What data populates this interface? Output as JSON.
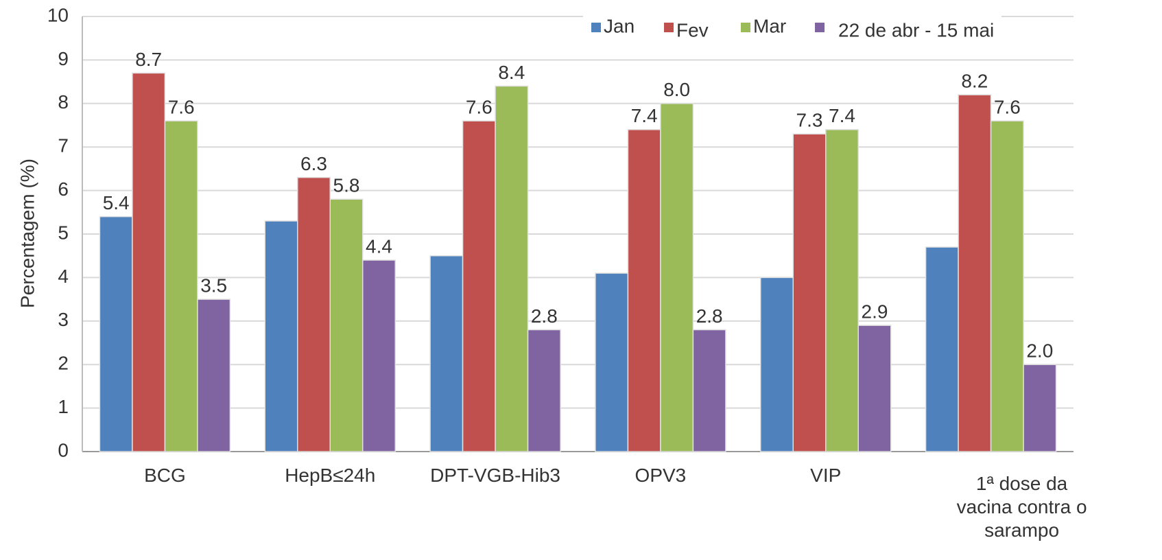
{
  "chart_data": {
    "type": "bar",
    "y_label": "Percentagem (%)",
    "categories": [
      "BCG",
      "HepB≤24h",
      "DPT-VGB-Hib3",
      "OPV3",
      "VIP",
      "1ª dose da vacina contra o sarampo"
    ],
    "series": [
      {
        "name": "Jan",
        "color": "#4f81bd",
        "values": [
          5.4,
          5.3,
          4.5,
          4.1,
          4.0,
          4.7
        ],
        "value_labels": [
          "5.4",
          null,
          null,
          null,
          null,
          null
        ]
      },
      {
        "name": "Fev",
        "color": "#c0504d",
        "values": [
          8.7,
          6.3,
          7.6,
          7.4,
          7.3,
          8.2
        ],
        "value_labels": [
          "8.7",
          "6.3",
          "7.6",
          "7.4",
          "7.3",
          "8.2"
        ]
      },
      {
        "name": "Mar",
        "color": "#9bbb59",
        "values": [
          7.6,
          5.8,
          8.4,
          8.0,
          7.4,
          7.6
        ],
        "value_labels": [
          "7.6",
          "5.8",
          "8.4",
          "8.0",
          "7.4",
          "7.6"
        ]
      },
      {
        "name": "22 de abr - 15 mai",
        "color": "#8064a2",
        "values": [
          3.5,
          4.4,
          2.8,
          2.8,
          2.9,
          2.0
        ],
        "value_labels": [
          "3.5",
          "4.4",
          "2.8",
          "2.8",
          "2.9",
          "2.0"
        ]
      }
    ],
    "ylim": [
      0,
      10
    ],
    "yticks": [
      0,
      1,
      2,
      3,
      4,
      5,
      6,
      7,
      8,
      9,
      10
    ],
    "grid": true,
    "legend": "top-right"
  }
}
